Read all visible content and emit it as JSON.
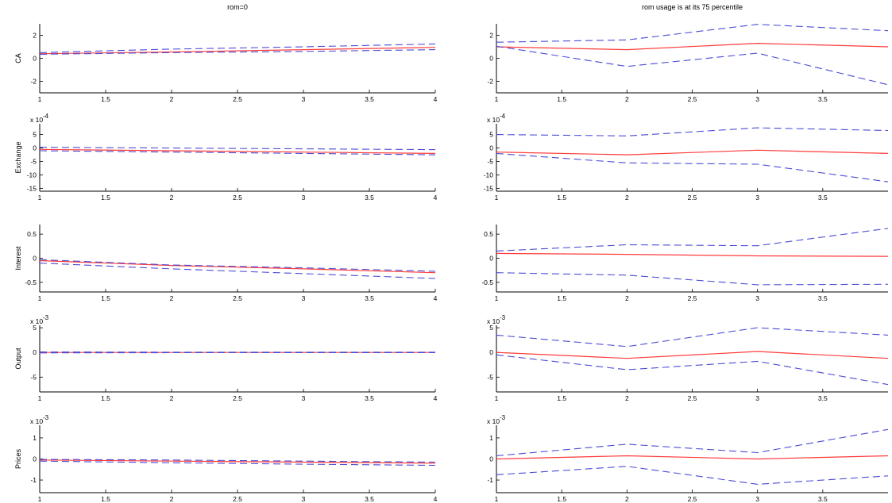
{
  "colors": {
    "estimate": "#ff3b3b",
    "bands": "#4b4bd6",
    "axis": "#000000"
  },
  "chart_data": [
    {
      "type": "line",
      "title": "rom=0",
      "ylabel": "CA",
      "y_scale_label": "",
      "x": [
        1,
        2,
        3,
        4
      ],
      "xlim": [
        1,
        4
      ],
      "ylim": [
        -3,
        3
      ],
      "xticks": [
        1,
        1.5,
        2,
        2.5,
        3,
        3.5,
        4
      ],
      "yticks": [
        -2,
        0,
        2
      ],
      "xtick_labels": [
        "1",
        "1.5",
        "2",
        "2.5",
        "3",
        "3.5",
        "4"
      ],
      "ytick_labels": [
        "-2",
        "0",
        "2"
      ],
      "series": [
        {
          "role": "estimate",
          "values": [
            0.4,
            0.55,
            0.75,
            0.95
          ]
        },
        {
          "role": "upper",
          "values": [
            0.5,
            0.8,
            1.0,
            1.25
          ]
        },
        {
          "role": "lower",
          "values": [
            0.35,
            0.5,
            0.6,
            0.75
          ]
        }
      ]
    },
    {
      "type": "line",
      "title": "rom usage is at its 75 percentile",
      "ylabel": "",
      "y_scale_label": "",
      "x": [
        1,
        2,
        3,
        4
      ],
      "xlim": [
        1,
        4
      ],
      "ylim": [
        -3,
        3
      ],
      "xticks": [
        1,
        1.5,
        2,
        2.5,
        3,
        3.5
      ],
      "yticks": [
        -2,
        0,
        2
      ],
      "xtick_labels": [
        "1",
        "1.5",
        "2",
        "2.5",
        "3",
        "3.5"
      ],
      "ytick_labels": [
        "-2",
        "0",
        "2"
      ],
      "series": [
        {
          "role": "estimate",
          "values": [
            1.0,
            0.75,
            1.3,
            1.0
          ]
        },
        {
          "role": "upper",
          "values": [
            1.4,
            1.6,
            2.95,
            2.4
          ]
        },
        {
          "role": "lower",
          "values": [
            1.05,
            -0.7,
            0.45,
            -2.3
          ]
        }
      ]
    },
    {
      "type": "line",
      "title": "",
      "ylabel": "Exchange",
      "y_scale_label": "x 10",
      "y_scale_exp": "-4",
      "x": [
        1,
        2,
        3,
        4
      ],
      "xlim": [
        1,
        4
      ],
      "ylim": [
        -16,
        9
      ],
      "xticks": [
        1,
        1.5,
        2,
        2.5,
        3,
        3.5,
        4
      ],
      "yticks": [
        -15,
        -10,
        -5,
        0,
        5
      ],
      "xtick_labels": [
        "1",
        "1.5",
        "2",
        "2.5",
        "3",
        "3.5",
        "4"
      ],
      "ytick_labels": [
        "-15",
        "-10",
        "-5",
        "0",
        "5"
      ],
      "series": [
        {
          "role": "estimate",
          "values": [
            -0.5,
            -1.0,
            -1.5,
            -2.0
          ]
        },
        {
          "role": "upper",
          "values": [
            0.3,
            0.0,
            -0.3,
            -0.6
          ]
        },
        {
          "role": "lower",
          "values": [
            -1.0,
            -1.5,
            -2.0,
            -2.5
          ]
        }
      ]
    },
    {
      "type": "line",
      "title": "",
      "ylabel": "",
      "y_scale_label": "x 10",
      "y_scale_exp": "-4",
      "x": [
        1,
        2,
        3,
        4
      ],
      "xlim": [
        1,
        4
      ],
      "ylim": [
        -16,
        9
      ],
      "xticks": [
        1,
        1.5,
        2,
        2.5,
        3,
        3.5
      ],
      "yticks": [
        -15,
        -10,
        -5,
        0,
        5
      ],
      "xtick_labels": [
        "1",
        "1.5",
        "2",
        "2.5",
        "3",
        "3.5"
      ],
      "ytick_labels": [
        "-15",
        "-10",
        "-5",
        "0",
        "5"
      ],
      "series": [
        {
          "role": "estimate",
          "values": [
            -1.5,
            -2.5,
            -0.8,
            -2.0
          ]
        },
        {
          "role": "upper",
          "values": [
            5.0,
            4.5,
            7.5,
            6.5
          ]
        },
        {
          "role": "lower",
          "values": [
            -2.0,
            -5.5,
            -6.0,
            -12.5
          ]
        }
      ]
    },
    {
      "type": "line",
      "title": "",
      "ylabel": "Interest",
      "y_scale_label": "",
      "x": [
        1,
        2,
        3,
        4
      ],
      "xlim": [
        1,
        4
      ],
      "ylim": [
        -0.7,
        0.7
      ],
      "xticks": [
        1,
        1.5,
        2,
        2.5,
        3,
        3.5,
        4
      ],
      "yticks": [
        -0.5,
        0,
        0.5
      ],
      "xtick_labels": [
        "1",
        "1.5",
        "2",
        "2.5",
        "3",
        "3.5",
        "4"
      ],
      "ytick_labels": [
        "-0.5",
        "0",
        "0.5"
      ],
      "series": [
        {
          "role": "estimate",
          "values": [
            -0.05,
            -0.15,
            -0.22,
            -0.3
          ]
        },
        {
          "role": "upper",
          "values": [
            -0.03,
            -0.14,
            -0.2,
            -0.27
          ]
        },
        {
          "role": "lower",
          "values": [
            -0.1,
            -0.22,
            -0.32,
            -0.42
          ]
        }
      ]
    },
    {
      "type": "line",
      "title": "",
      "ylabel": "",
      "y_scale_label": "",
      "x": [
        1,
        2,
        3,
        4
      ],
      "xlim": [
        1,
        4
      ],
      "ylim": [
        -0.7,
        0.7
      ],
      "xticks": [
        1,
        1.5,
        2,
        2.5,
        3,
        3.5
      ],
      "yticks": [
        -0.5,
        0,
        0.5
      ],
      "xtick_labels": [
        "1",
        "1.5",
        "2",
        "2.5",
        "3",
        "3.5"
      ],
      "ytick_labels": [
        "-0.5",
        "0",
        "0.5"
      ],
      "series": [
        {
          "role": "estimate",
          "values": [
            0.1,
            0.08,
            0.05,
            0.04
          ]
        },
        {
          "role": "upper",
          "values": [
            0.15,
            0.28,
            0.26,
            0.62
          ]
        },
        {
          "role": "lower",
          "values": [
            -0.3,
            -0.35,
            -0.55,
            -0.54
          ]
        }
      ]
    },
    {
      "type": "line",
      "title": "",
      "ylabel": "Output",
      "y_scale_label": "x 10",
      "y_scale_exp": "-3",
      "x": [
        1,
        2,
        3,
        4
      ],
      "xlim": [
        1,
        4
      ],
      "ylim": [
        -8,
        5.5
      ],
      "xticks": [
        1,
        1.5,
        2,
        2.5,
        3,
        3.5,
        4
      ],
      "yticks": [
        -5,
        0,
        5
      ],
      "xtick_labels": [
        "1",
        "1.5",
        "2",
        "2.5",
        "3",
        "3.5",
        "4"
      ],
      "ytick_labels": [
        "-5",
        "0",
        "5"
      ],
      "series": [
        {
          "role": "estimate",
          "values": [
            0.0,
            0.0,
            0.0,
            0.0
          ]
        },
        {
          "role": "upper",
          "values": [
            0.1,
            0.05,
            0.05,
            0.05
          ]
        },
        {
          "role": "lower",
          "values": [
            -0.1,
            -0.05,
            -0.05,
            -0.05
          ]
        }
      ]
    },
    {
      "type": "line",
      "title": "",
      "ylabel": "",
      "y_scale_label": "x 10",
      "y_scale_exp": "-3",
      "x": [
        1,
        2,
        3,
        4
      ],
      "xlim": [
        1,
        4
      ],
      "ylim": [
        -8,
        5.5
      ],
      "xticks": [
        1,
        1.5,
        2,
        2.5,
        3,
        3.5
      ],
      "yticks": [
        -5,
        0,
        5
      ],
      "xtick_labels": [
        "1",
        "1.5",
        "2",
        "2.5",
        "3",
        "3.5"
      ],
      "ytick_labels": [
        "-5",
        "0",
        "5"
      ],
      "series": [
        {
          "role": "estimate",
          "values": [
            0.0,
            -1.2,
            0.2,
            -1.2
          ]
        },
        {
          "role": "upper",
          "values": [
            3.5,
            1.2,
            5.0,
            3.5
          ]
        },
        {
          "role": "lower",
          "values": [
            -0.5,
            -3.5,
            -1.8,
            -6.5
          ]
        }
      ]
    },
    {
      "type": "line",
      "title": "",
      "ylabel": "Prices",
      "y_scale_label": "x 10",
      "y_scale_exp": "-3",
      "x": [
        1,
        2,
        3,
        4
      ],
      "xlim": [
        1,
        4
      ],
      "ylim": [
        -1.6,
        1.6
      ],
      "xticks": [
        1,
        1.5,
        2,
        2.5,
        3,
        3.5,
        4
      ],
      "yticks": [
        -1,
        0,
        1
      ],
      "xtick_labels": [
        "1",
        "1.5",
        "2",
        "2.5",
        "3",
        "3.5",
        "4"
      ],
      "ytick_labels": [
        "-1",
        "0",
        "1"
      ],
      "series": [
        {
          "role": "estimate",
          "values": [
            -0.05,
            -0.1,
            -0.15,
            -0.2
          ]
        },
        {
          "role": "upper",
          "values": [
            -0.02,
            -0.05,
            -0.1,
            -0.15
          ]
        },
        {
          "role": "lower",
          "values": [
            -0.1,
            -0.18,
            -0.25,
            -0.3
          ]
        }
      ]
    },
    {
      "type": "line",
      "title": "",
      "ylabel": "",
      "y_scale_label": "x 10",
      "y_scale_exp": "-3",
      "x": [
        1,
        2,
        3,
        4
      ],
      "xlim": [
        1,
        4
      ],
      "ylim": [
        -1.6,
        1.6
      ],
      "xticks": [
        1,
        1.5,
        2,
        2.5,
        3,
        3.5
      ],
      "yticks": [
        -1,
        0,
        1
      ],
      "xtick_labels": [
        "1",
        "1.5",
        "2",
        "2.5",
        "3",
        "3.5"
      ],
      "ytick_labels": [
        "-1",
        "0",
        "1"
      ],
      "series": [
        {
          "role": "estimate",
          "values": [
            0.0,
            0.15,
            0.0,
            0.15
          ]
        },
        {
          "role": "upper",
          "values": [
            0.15,
            0.7,
            0.3,
            1.4
          ]
        },
        {
          "role": "lower",
          "values": [
            -0.75,
            -0.35,
            -1.2,
            -0.8
          ]
        }
      ]
    }
  ]
}
